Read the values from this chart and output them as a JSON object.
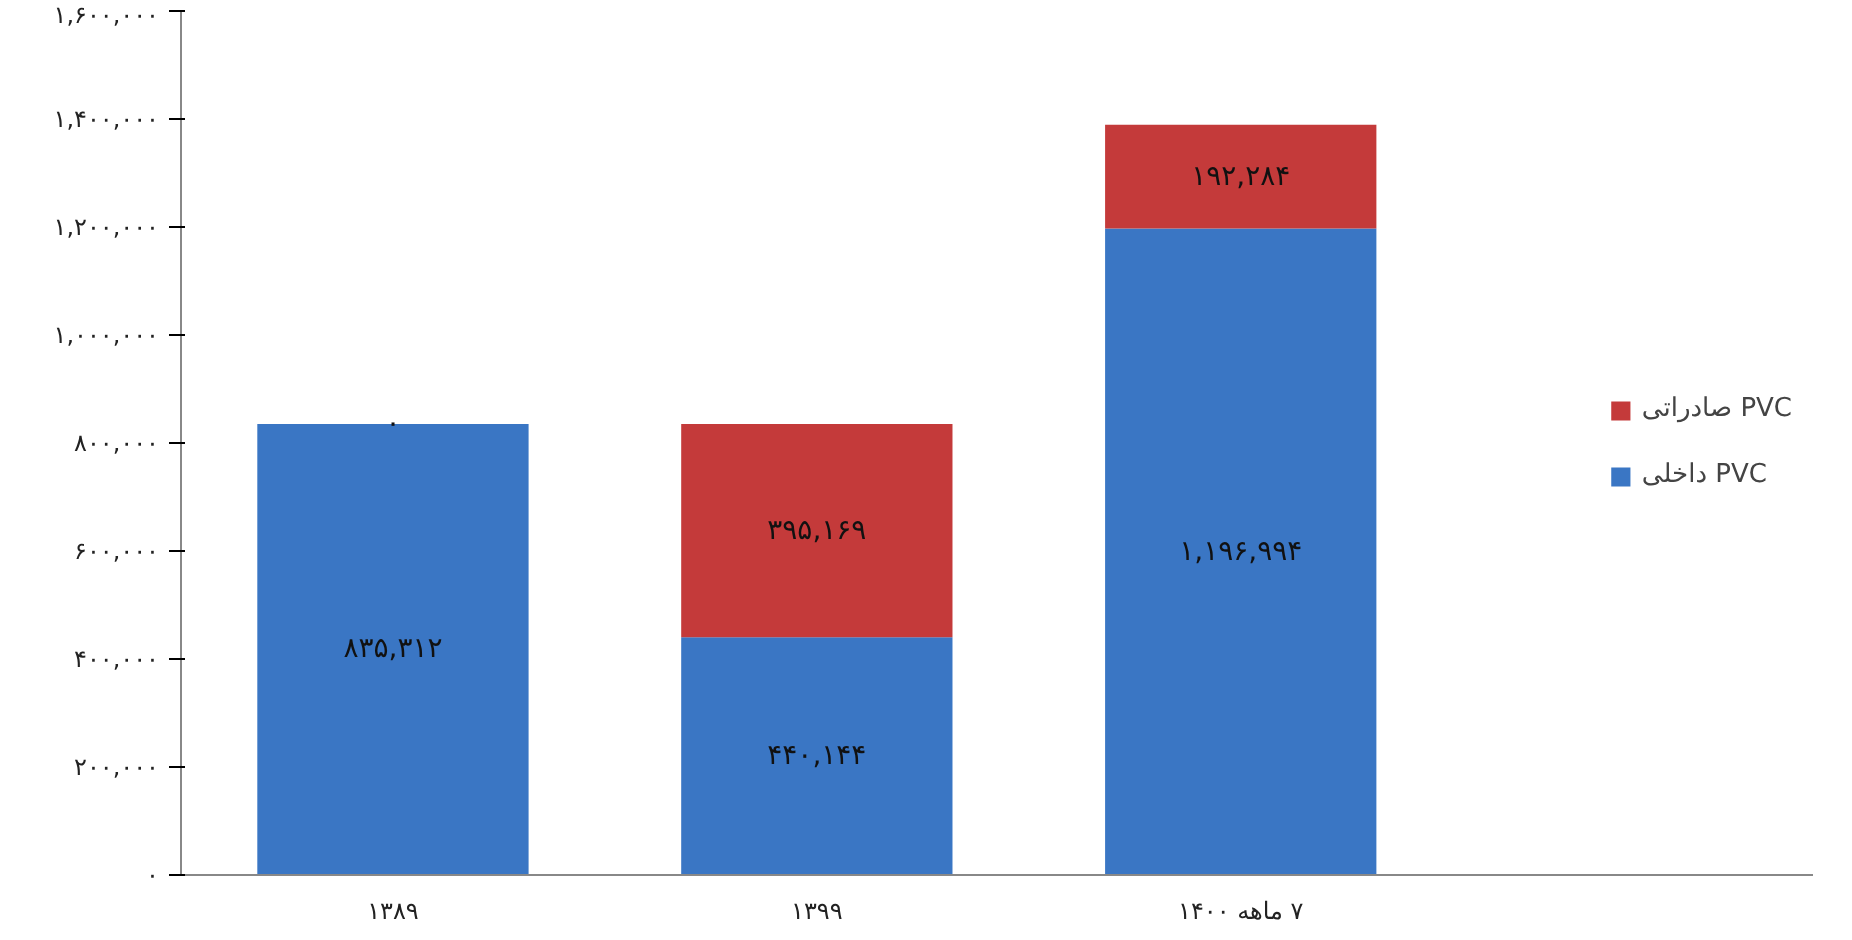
{
  "chart_data": {
    "type": "bar",
    "stacked": true,
    "categories": [
      "۱۳۸۹",
      "۱۳۹۹",
      "۷ ماهه ۱۴۰۰"
    ],
    "series": [
      {
        "name": "PVC داخلی",
        "color": "#3a76c4",
        "values": [
          835312,
          440144,
          1196994
        ],
        "value_labels": [
          "۸۳۵,۳۱۲",
          "۴۴۰,۱۴۴",
          "۱,۱۹۶,۹۹۴"
        ]
      },
      {
        "name": "PVC صادراتی",
        "color": "#c43a3a",
        "values": [
          0,
          395169,
          192284
        ],
        "value_labels": [
          "۰",
          "۳۹۵,۱۶۹",
          "۱۹۲,۲۸۴"
        ]
      }
    ],
    "ylim": [
      0,
      1600000
    ],
    "yticks": [
      {
        "value": 0,
        "label": "۰"
      },
      {
        "value": 200000,
        "label": "۲۰۰,۰۰۰"
      },
      {
        "value": 400000,
        "label": "۴۰۰,۰۰۰"
      },
      {
        "value": 600000,
        "label": "۶۰۰,۰۰۰"
      },
      {
        "value": 800000,
        "label": "۸۰۰,۰۰۰"
      },
      {
        "value": 1000000,
        "label": "۱,۰۰۰,۰۰۰"
      },
      {
        "value": 1200000,
        "label": "۱,۲۰۰,۰۰۰"
      },
      {
        "value": 1400000,
        "label": "۱,۴۰۰,۰۰۰"
      },
      {
        "value": 1600000,
        "label": "۱,۶۰۰,۰۰۰"
      }
    ],
    "grid": false,
    "legend": "right"
  }
}
